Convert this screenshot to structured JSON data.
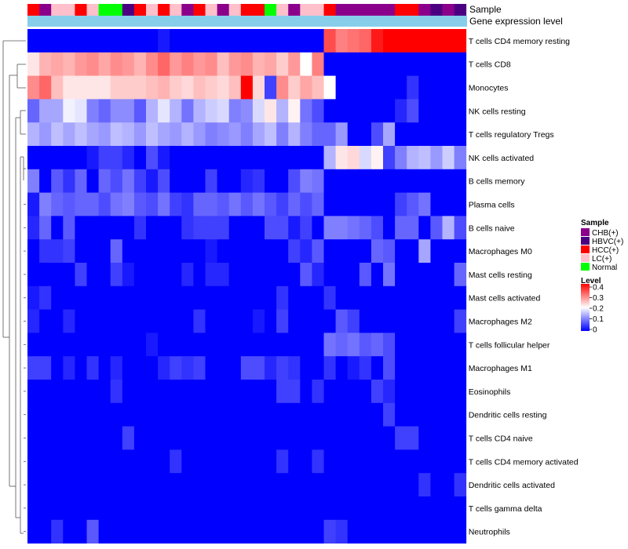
{
  "chart_data": {
    "type": "heatmap",
    "title": "",
    "annotations": {
      "sample_label": "Sample",
      "gene_expression_label": "Gene expression level"
    },
    "sample_annotation": [
      "HCC(+)",
      "CHB(+)",
      "LC(+)",
      "LC(+)",
      "HCC(+)",
      "LC(+)",
      "Normal",
      "Normal",
      "HBVC(+)",
      "HCC(+)",
      "LC(+)",
      "HCC(+)",
      "LC(+)",
      "CHB(+)",
      "HCC(+)",
      "LC(+)",
      "CHB(+)",
      "LC(+)",
      "HCC(+)",
      "HCC(+)",
      "Normal",
      "LC(+)",
      "CHB(+)",
      "LC(+)",
      "LC(+)",
      "HCC(+)",
      "CHB(+)",
      "CHB(+)",
      "CHB(+)",
      "CHB(+)",
      "CHB(+)",
      "HCC(+)",
      "HCC(+)",
      "CHB(+)",
      "HBVC(+)",
      "CHB(+)",
      "HBVC(+)"
    ],
    "rows": [
      "T cells CD4 memory resting",
      "T cells CD8",
      "Monocytes",
      "NK cells resting",
      "T cells regulatory  Tregs",
      "NK cells activated",
      "B cells memory",
      "Plasma cells",
      "B cells naive",
      "Macrophages M0",
      "Mast cells resting",
      "Mast cells activated",
      "Macrophages M2",
      "T cells follicular helper",
      "Macrophages M1",
      "Eosinophils",
      "Dendritic cells resting",
      "T cells CD4 naive",
      "T cells CD4 memory activated",
      "Dendritic cells activated",
      "T cells gamma delta",
      "Neutrophils"
    ],
    "color_scale": {
      "min": 0,
      "max": 0.4,
      "low_color": "#0000ff",
      "mid_color": "#ffffff",
      "mid_value": 0.2,
      "high_color": "#ff0000"
    },
    "legend": {
      "sample_title": "Sample",
      "sample_entries": [
        {
          "label": "CHB(+)",
          "color": "#8b008b"
        },
        {
          "label": "HBVC(+)",
          "color": "#4b0082"
        },
        {
          "label": "HCC(+)",
          "color": "#ff0000"
        },
        {
          "label": "LC(+)",
          "color": "#ffc0cb"
        },
        {
          "label": "Normal",
          "color": "#00ff00"
        }
      ],
      "level_title": "Level",
      "level_ticks": [
        "0.4",
        "0.3",
        "0.2",
        "0.1",
        "0"
      ],
      "position": "right"
    },
    "values": [
      [
        0.0,
        0.0,
        0.0,
        0.0,
        0.0,
        0.0,
        0.0,
        0.0,
        0.0,
        0.0,
        0.0,
        0.02,
        0.0,
        0.0,
        0.0,
        0.0,
        0.0,
        0.0,
        0.0,
        0.0,
        0.0,
        0.0,
        0.0,
        0.0,
        0.0,
        0.34,
        0.3,
        0.31,
        0.32,
        0.38,
        0.4,
        0.4,
        0.4,
        0.4,
        0.4,
        0.4,
        0.4
      ],
      [
        0.22,
        0.26,
        0.27,
        0.26,
        0.28,
        0.29,
        0.27,
        0.29,
        0.28,
        0.26,
        0.29,
        0.32,
        0.28,
        0.3,
        0.28,
        0.29,
        0.25,
        0.28,
        0.29,
        0.26,
        0.27,
        0.24,
        0.28,
        0.2,
        0.3,
        0.0,
        0.0,
        0.0,
        0.0,
        0.0,
        0.0,
        0.0,
        0.0,
        0.0,
        0.0,
        0.0,
        0.0
      ],
      [
        0.29,
        0.32,
        0.25,
        0.22,
        0.22,
        0.22,
        0.22,
        0.24,
        0.24,
        0.24,
        0.25,
        0.26,
        0.24,
        0.23,
        0.25,
        0.24,
        0.23,
        0.25,
        0.4,
        0.23,
        0.05,
        0.29,
        0.24,
        0.27,
        0.25,
        0.2,
        0.0,
        0.0,
        0.0,
        0.0,
        0.0,
        0.0,
        0.04,
        0.0,
        0.0,
        0.0,
        0.0
      ],
      [
        0.08,
        0.13,
        0.13,
        0.19,
        0.18,
        0.1,
        0.08,
        0.11,
        0.11,
        0.07,
        0.14,
        0.18,
        0.14,
        0.09,
        0.14,
        0.16,
        0.17,
        0.1,
        0.11,
        0.17,
        0.22,
        0.14,
        0.21,
        0.09,
        0.06,
        0.0,
        0.0,
        0.0,
        0.0,
        0.0,
        0.0,
        0.03,
        0.06,
        0.0,
        0.0,
        0.0,
        0.0
      ],
      [
        0.14,
        0.12,
        0.15,
        0.13,
        0.15,
        0.13,
        0.12,
        0.15,
        0.14,
        0.12,
        0.15,
        0.13,
        0.12,
        0.14,
        0.12,
        0.1,
        0.11,
        0.12,
        0.1,
        0.13,
        0.15,
        0.1,
        0.14,
        0.1,
        0.08,
        0.08,
        0.12,
        0.0,
        0.0,
        0.06,
        0.13,
        0.0,
        0.0,
        0.0,
        0.0,
        0.0,
        0.0
      ],
      [
        0.0,
        0.0,
        0.0,
        0.0,
        0.0,
        0.02,
        0.05,
        0.05,
        0.03,
        0.0,
        0.06,
        0.02,
        0.0,
        0.0,
        0.0,
        0.0,
        0.0,
        0.0,
        0.0,
        0.0,
        0.0,
        0.0,
        0.0,
        0.0,
        0.0,
        0.14,
        0.22,
        0.23,
        0.17,
        0.21,
        0.05,
        0.1,
        0.14,
        0.15,
        0.12,
        0.16,
        0.1
      ],
      [
        0.1,
        0.0,
        0.07,
        0.04,
        0.08,
        0.0,
        0.08,
        0.06,
        0.09,
        0.05,
        0.02,
        0.06,
        0.0,
        0.0,
        0.0,
        0.05,
        0.0,
        0.0,
        0.03,
        0.04,
        0.0,
        0.0,
        0.06,
        0.1,
        0.09,
        0.0,
        0.0,
        0.0,
        0.0,
        0.0,
        0.0,
        0.0,
        0.0,
        0.0,
        0.0,
        0.0,
        0.0
      ],
      [
        0.02,
        0.1,
        0.08,
        0.07,
        0.08,
        0.08,
        0.06,
        0.09,
        0.1,
        0.07,
        0.06,
        0.09,
        0.05,
        0.04,
        0.08,
        0.08,
        0.07,
        0.09,
        0.07,
        0.09,
        0.07,
        0.05,
        0.08,
        0.06,
        0.08,
        0.0,
        0.0,
        0.0,
        0.0,
        0.0,
        0.0,
        0.05,
        0.07,
        0.09,
        0.0,
        0.0,
        0.0
      ],
      [
        0.03,
        0.08,
        0.0,
        0.07,
        0.0,
        0.0,
        0.0,
        0.0,
        0.0,
        0.04,
        0.0,
        0.0,
        0.0,
        0.04,
        0.05,
        0.05,
        0.05,
        0.0,
        0.0,
        0.0,
        0.06,
        0.06,
        0.02,
        0.05,
        0.0,
        0.1,
        0.1,
        0.09,
        0.08,
        0.06,
        0.0,
        0.08,
        0.08,
        0.0,
        0.07,
        0.14,
        0.06
      ],
      [
        0.0,
        0.04,
        0.04,
        0.05,
        0.0,
        0.0,
        0.0,
        0.08,
        0.0,
        0.0,
        0.0,
        0.0,
        0.0,
        0.0,
        0.0,
        0.02,
        0.0,
        0.0,
        0.0,
        0.0,
        0.0,
        0.0,
        0.05,
        0.03,
        0.07,
        0.0,
        0.0,
        0.0,
        0.0,
        0.08,
        0.07,
        0.0,
        0.0,
        0.13,
        0.0,
        0.0,
        0.0
      ],
      [
        0.0,
        0.0,
        0.0,
        0.0,
        0.05,
        0.0,
        0.0,
        0.05,
        0.02,
        0.0,
        0.0,
        0.0,
        0.0,
        0.03,
        0.0,
        0.03,
        0.03,
        0.0,
        0.0,
        0.0,
        0.0,
        0.0,
        0.0,
        0.07,
        0.03,
        0.0,
        0.0,
        0.0,
        0.07,
        0.0,
        0.09,
        0.0,
        0.0,
        0.0,
        0.0,
        0.0,
        0.08
      ],
      [
        0.02,
        0.04,
        0.0,
        0.0,
        0.0,
        0.0,
        0.0,
        0.0,
        0.0,
        0.0,
        0.0,
        0.0,
        0.0,
        0.0,
        0.0,
        0.0,
        0.0,
        0.0,
        0.0,
        0.0,
        0.0,
        0.04,
        0.0,
        0.0,
        0.0,
        0.04,
        0.0,
        0.0,
        0.0,
        0.0,
        0.0,
        0.0,
        0.0,
        0.0,
        0.0,
        0.0,
        0.0
      ],
      [
        0.03,
        0.0,
        0.0,
        0.03,
        0.0,
        0.0,
        0.0,
        0.0,
        0.0,
        0.0,
        0.0,
        0.0,
        0.0,
        0.0,
        0.04,
        0.0,
        0.0,
        0.0,
        0.0,
        0.02,
        0.0,
        0.05,
        0.0,
        0.0,
        0.0,
        0.0,
        0.07,
        0.05,
        0.0,
        0.0,
        0.0,
        0.0,
        0.0,
        0.0,
        0.0,
        0.0,
        0.05
      ],
      [
        0.0,
        0.0,
        0.0,
        0.0,
        0.0,
        0.0,
        0.0,
        0.0,
        0.0,
        0.0,
        0.02,
        0.0,
        0.0,
        0.0,
        0.0,
        0.0,
        0.0,
        0.0,
        0.0,
        0.0,
        0.0,
        0.0,
        0.0,
        0.0,
        0.0,
        0.09,
        0.08,
        0.09,
        0.07,
        0.08,
        0.06,
        0.0,
        0.0,
        0.0,
        0.0,
        0.0,
        0.0
      ],
      [
        0.05,
        0.05,
        0.0,
        0.03,
        0.0,
        0.04,
        0.0,
        0.03,
        0.0,
        0.0,
        0.0,
        0.03,
        0.05,
        0.04,
        0.05,
        0.0,
        0.0,
        0.0,
        0.06,
        0.06,
        0.03,
        0.05,
        0.04,
        0.0,
        0.0,
        0.04,
        0.0,
        0.02,
        0.04,
        0.0,
        0.06,
        0.0,
        0.0,
        0.0,
        0.0,
        0.0,
        0.0
      ],
      [
        0.0,
        0.0,
        0.0,
        0.0,
        0.0,
        0.0,
        0.0,
        0.04,
        0.0,
        0.0,
        0.0,
        0.0,
        0.0,
        0.0,
        0.0,
        0.0,
        0.0,
        0.0,
        0.0,
        0.0,
        0.0,
        0.05,
        0.05,
        0.0,
        0.04,
        0.0,
        0.0,
        0.0,
        0.0,
        0.05,
        0.03,
        0.0,
        0.0,
        0.0,
        0.0,
        0.0,
        0.0
      ],
      [
        0.0,
        0.0,
        0.0,
        0.0,
        0.0,
        0.0,
        0.0,
        0.0,
        0.0,
        0.0,
        0.0,
        0.0,
        0.0,
        0.0,
        0.0,
        0.0,
        0.0,
        0.0,
        0.0,
        0.0,
        0.0,
        0.0,
        0.0,
        0.0,
        0.0,
        0.0,
        0.0,
        0.0,
        0.0,
        0.0,
        0.05,
        0.0,
        0.0,
        0.0,
        0.0,
        0.0,
        0.0
      ],
      [
        0.0,
        0.0,
        0.0,
        0.0,
        0.0,
        0.0,
        0.0,
        0.0,
        0.05,
        0.0,
        0.0,
        0.0,
        0.0,
        0.0,
        0.0,
        0.0,
        0.0,
        0.0,
        0.0,
        0.0,
        0.0,
        0.0,
        0.0,
        0.0,
        0.0,
        0.0,
        0.0,
        0.0,
        0.0,
        0.0,
        0.0,
        0.05,
        0.05,
        0.0,
        0.0,
        0.0,
        0.0
      ],
      [
        0.0,
        0.0,
        0.0,
        0.0,
        0.0,
        0.0,
        0.0,
        0.0,
        0.0,
        0.0,
        0.0,
        0.0,
        0.04,
        0.0,
        0.0,
        0.0,
        0.0,
        0.0,
        0.0,
        0.0,
        0.0,
        0.04,
        0.0,
        0.0,
        0.04,
        0.0,
        0.0,
        0.0,
        0.0,
        0.0,
        0.0,
        0.0,
        0.0,
        0.0,
        0.0,
        0.0,
        0.0
      ],
      [
        0.0,
        0.0,
        0.0,
        0.0,
        0.0,
        0.0,
        0.0,
        0.0,
        0.0,
        0.0,
        0.0,
        0.0,
        0.0,
        0.0,
        0.0,
        0.0,
        0.0,
        0.0,
        0.0,
        0.0,
        0.0,
        0.0,
        0.0,
        0.0,
        0.0,
        0.0,
        0.0,
        0.0,
        0.0,
        0.0,
        0.0,
        0.0,
        0.0,
        0.04,
        0.0,
        0.0,
        0.04
      ],
      [
        0.0,
        0.0,
        0.0,
        0.0,
        0.0,
        0.0,
        0.0,
        0.0,
        0.0,
        0.0,
        0.0,
        0.0,
        0.0,
        0.0,
        0.0,
        0.0,
        0.0,
        0.0,
        0.0,
        0.0,
        0.0,
        0.0,
        0.0,
        0.0,
        0.0,
        0.0,
        0.0,
        0.0,
        0.0,
        0.0,
        0.0,
        0.0,
        0.0,
        0.0,
        0.0,
        0.0,
        0.0
      ],
      [
        0.0,
        0.0,
        0.04,
        0.0,
        0.0,
        0.07,
        0.0,
        0.0,
        0.0,
        0.0,
        0.0,
        0.0,
        0.0,
        0.0,
        0.0,
        0.0,
        0.0,
        0.0,
        0.0,
        0.0,
        0.0,
        0.0,
        0.0,
        0.0,
        0.0,
        0.05,
        0.04,
        0.0,
        0.0,
        0.0,
        0.0,
        0.0,
        0.0,
        0.0,
        0.0,
        0.0,
        0.0
      ]
    ]
  }
}
